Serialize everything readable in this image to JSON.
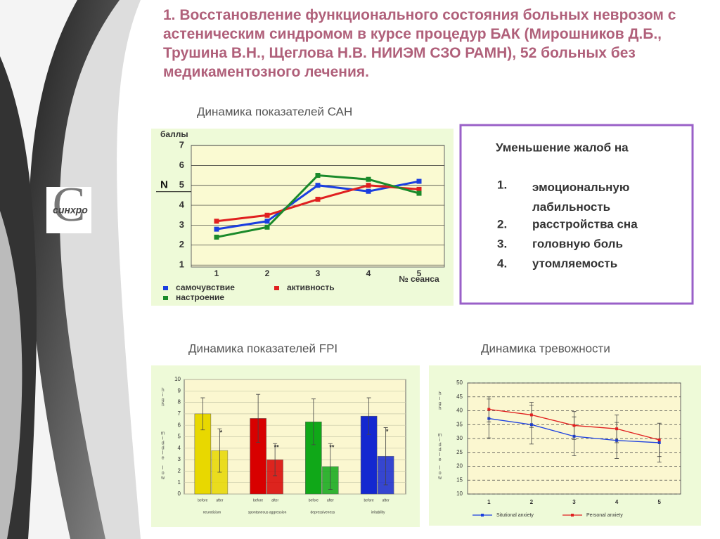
{
  "title": "1. Восстановление функционального состояния больных неврозом с астеническим синдромом в курсе процедур БАК (Мирошников Д.Б., Трушина В.Н., Щеглова Н.В. НИИЭМ СЗО РАМН), 52 больных без медикаментозного лечения.",
  "logo": "синхро",
  "complaints": {
    "heading": "Уменьшение жалоб на",
    "items": [
      {
        "num": "1.",
        "text": "эмоциональную лабильность"
      },
      {
        "num": "2.",
        "text": "расстройства сна"
      },
      {
        "num": "3.",
        "text": "головную боль"
      },
      {
        "num": "4.",
        "text": "утомляемость"
      }
    ]
  },
  "chart_data": [
    {
      "type": "line",
      "title": "Динамика показателей САН",
      "y_label": "баллы",
      "x_label": "№ сеанса",
      "annotation": "N",
      "annotation_y": 5,
      "categories": [
        "1",
        "2",
        "3",
        "4",
        "5"
      ],
      "ylim": [
        0.9,
        7
      ],
      "yticks": [
        1,
        2,
        3,
        4,
        5,
        6,
        7
      ],
      "grid": true,
      "series": [
        {
          "name": "самочувствие",
          "color": "#1a3ee0",
          "values": [
            2.8,
            3.2,
            5,
            4.7,
            5.2
          ]
        },
        {
          "name": "активность",
          "color": "#e02020",
          "values": [
            3.2,
            3.5,
            4.3,
            5,
            4.8
          ]
        },
        {
          "name": "настроение",
          "color": "#1a8a2a",
          "values": [
            2.4,
            2.9,
            5.5,
            5.3,
            4.6
          ]
        }
      ]
    },
    {
      "type": "bar",
      "title": "Динамика показателей FPI",
      "side_labels": [
        "high",
        "middle",
        "low"
      ],
      "categories": [
        "neuroticism",
        "spontaneous aggression",
        "depressiveness",
        "irritability"
      ],
      "ylim": [
        0,
        10
      ],
      "yticks": [
        0,
        1,
        2,
        3,
        4,
        5,
        6,
        7,
        8,
        9,
        10
      ],
      "grid": true,
      "series": [
        {
          "name": "before",
          "color": [
            "#e8d800",
            "#d80000",
            "#10a818",
            "#1428d0"
          ],
          "values": [
            7,
            6.6,
            6.3,
            6.8
          ],
          "errors": [
            1.4,
            2.1,
            2.0,
            1.6
          ]
        },
        {
          "name": "after",
          "color": [
            "#e8d800",
            "#d80000",
            "#10a818",
            "#1428d0"
          ],
          "values": [
            3.8,
            3.0,
            2.4,
            3.3
          ],
          "errors": [
            1.9,
            1.4,
            2.0,
            2.5
          ]
        }
      ],
      "significance": [
        "*",
        "**",
        "**",
        "*"
      ]
    },
    {
      "type": "line",
      "title": "Динамика тревожности",
      "side_labels": [
        "high",
        "middle",
        "low"
      ],
      "categories": [
        "1",
        "2",
        "3",
        "4",
        "5"
      ],
      "ylim": [
        10,
        50
      ],
      "yticks": [
        10,
        15,
        20,
        25,
        30,
        35,
        40,
        45,
        50
      ],
      "grid": true,
      "series": [
        {
          "name": "Situtional anxiety",
          "color": "#1a3ee0",
          "values": [
            37.2,
            35,
            30.8,
            29.3,
            28.5
          ],
          "errors": [
            7,
            7,
            7,
            6.5,
            7
          ]
        },
        {
          "name": "Personal anxiety",
          "color": "#e02020",
          "values": [
            40.5,
            38.5,
            34.7,
            33.5,
            29.5
          ],
          "errors": [
            4.5,
            4.5,
            5,
            5,
            6
          ]
        }
      ]
    }
  ]
}
